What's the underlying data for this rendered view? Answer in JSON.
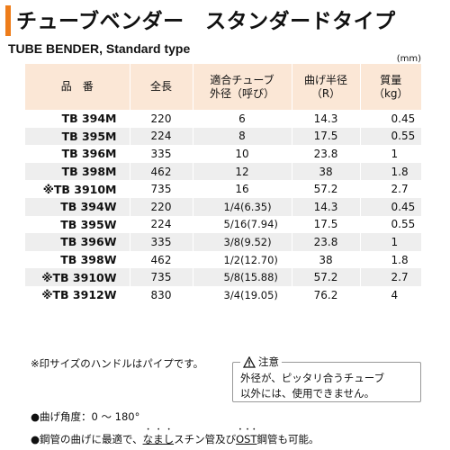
{
  "header": {
    "title_jp": "チューブベンダー　スタンダードタイプ",
    "title_en": "TUBE BENDER, Standard type",
    "unit": "(mm)",
    "accent_color": "#ee7d1b"
  },
  "table": {
    "columns": [
      {
        "line1": "品　番",
        "line2": ""
      },
      {
        "line1": "全長",
        "line2": ""
      },
      {
        "line1": "適合チューブ",
        "line2": "外径（呼び）"
      },
      {
        "line1": "曲げ半径",
        "line2": "（R）"
      },
      {
        "line1": "質量",
        "line2": "（kg）"
      }
    ],
    "header_bg": "#fbe7d6",
    "stripe_bg": "#eeeeee",
    "rows": [
      {
        "part": "TB 394M",
        "length": "220",
        "od": "6",
        "radius": "14.3",
        "mass": "0.45"
      },
      {
        "part": "TB 395M",
        "length": "224",
        "od": "8",
        "radius": "17.5",
        "mass": "0.55"
      },
      {
        "part": "TB 396M",
        "length": "335",
        "od": "10",
        "radius": "23.8",
        "mass": "1"
      },
      {
        "part": "TB 398M",
        "length": "462",
        "od": "12",
        "radius": "38",
        "mass": "1.8"
      },
      {
        "part": "※TB 3910M",
        "length": "735",
        "od": "16",
        "radius": "57.2",
        "mass": "2.7"
      },
      {
        "part": "TB 394W",
        "length": "220",
        "od": "1/4(6.35)",
        "radius": "14.3",
        "mass": "0.45"
      },
      {
        "part": "TB 395W",
        "length": "224",
        "od": "5/16(7.94)",
        "radius": "17.5",
        "mass": "0.55"
      },
      {
        "part": "TB 396W",
        "length": "335",
        "od": "3/8(9.52)",
        "radius": "23.8",
        "mass": "1"
      },
      {
        "part": "TB 398W",
        "length": "462",
        "od": "1/2(12.70)",
        "radius": "38",
        "mass": "1.8"
      },
      {
        "part": "※TB 3910W",
        "length": "735",
        "od": "5/8(15.88)",
        "radius": "57.2",
        "mass": "2.7"
      },
      {
        "part": "※TB 3912W",
        "length": "830",
        "od": "3/4(19.05)",
        "radius": "76.2",
        "mass": "4"
      }
    ]
  },
  "notes": {
    "handle_note": "※印サイズのハンドルはパイプです。",
    "caution_title": "注意",
    "caution_icon": "warning-icon",
    "caution_line1": "外径が、ピッタリ合うチューブ",
    "caution_line2": "以外には、使用できません。",
    "bullet1": "●曲げ角度：0 ～ 180°",
    "bullet2_a": "●鋼管の曲げに最適で、",
    "bullet2_b": "なまし",
    "bullet2_c": "スチン管及び",
    "bullet2_d": "OST",
    "bullet2_e": "鋼管も可能。"
  }
}
